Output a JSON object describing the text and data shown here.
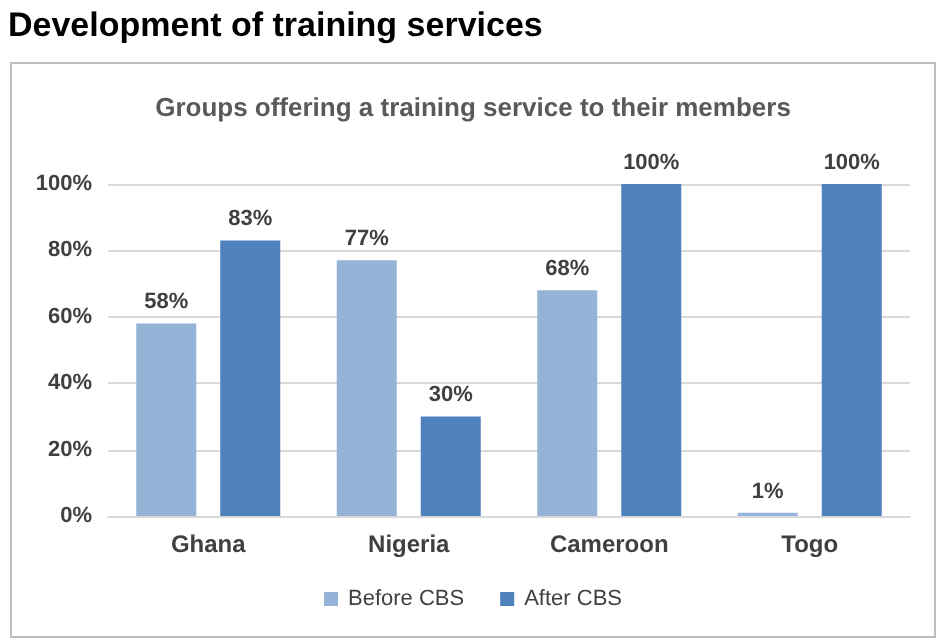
{
  "chart_data": {
    "type": "bar",
    "title": "Development of training services",
    "subtitle": "Groups offering a training service to their members",
    "categories": [
      "Ghana",
      "Nigeria",
      "Cameroon",
      "Togo"
    ],
    "series": [
      {
        "name": "Before CBS",
        "color": "#95b3d7",
        "values": [
          58,
          77,
          68,
          1
        ],
        "value_labels": [
          "58%",
          "77%",
          "68%",
          "1%"
        ]
      },
      {
        "name": "After CBS",
        "color": "#4f81bd",
        "values": [
          83,
          30,
          100,
          100
        ],
        "value_labels": [
          "83%",
          "30%",
          "100%",
          "100%"
        ]
      }
    ],
    "ylim": [
      0,
      100
    ],
    "yticks": [
      {
        "value": 0,
        "label": "0%"
      },
      {
        "value": 20,
        "label": "20%"
      },
      {
        "value": 40,
        "label": "40%"
      },
      {
        "value": 60,
        "label": "60%"
      },
      {
        "value": 80,
        "label": "80%"
      },
      {
        "value": 100,
        "label": "100%"
      }
    ],
    "grid": "y",
    "legend": "bottom"
  }
}
